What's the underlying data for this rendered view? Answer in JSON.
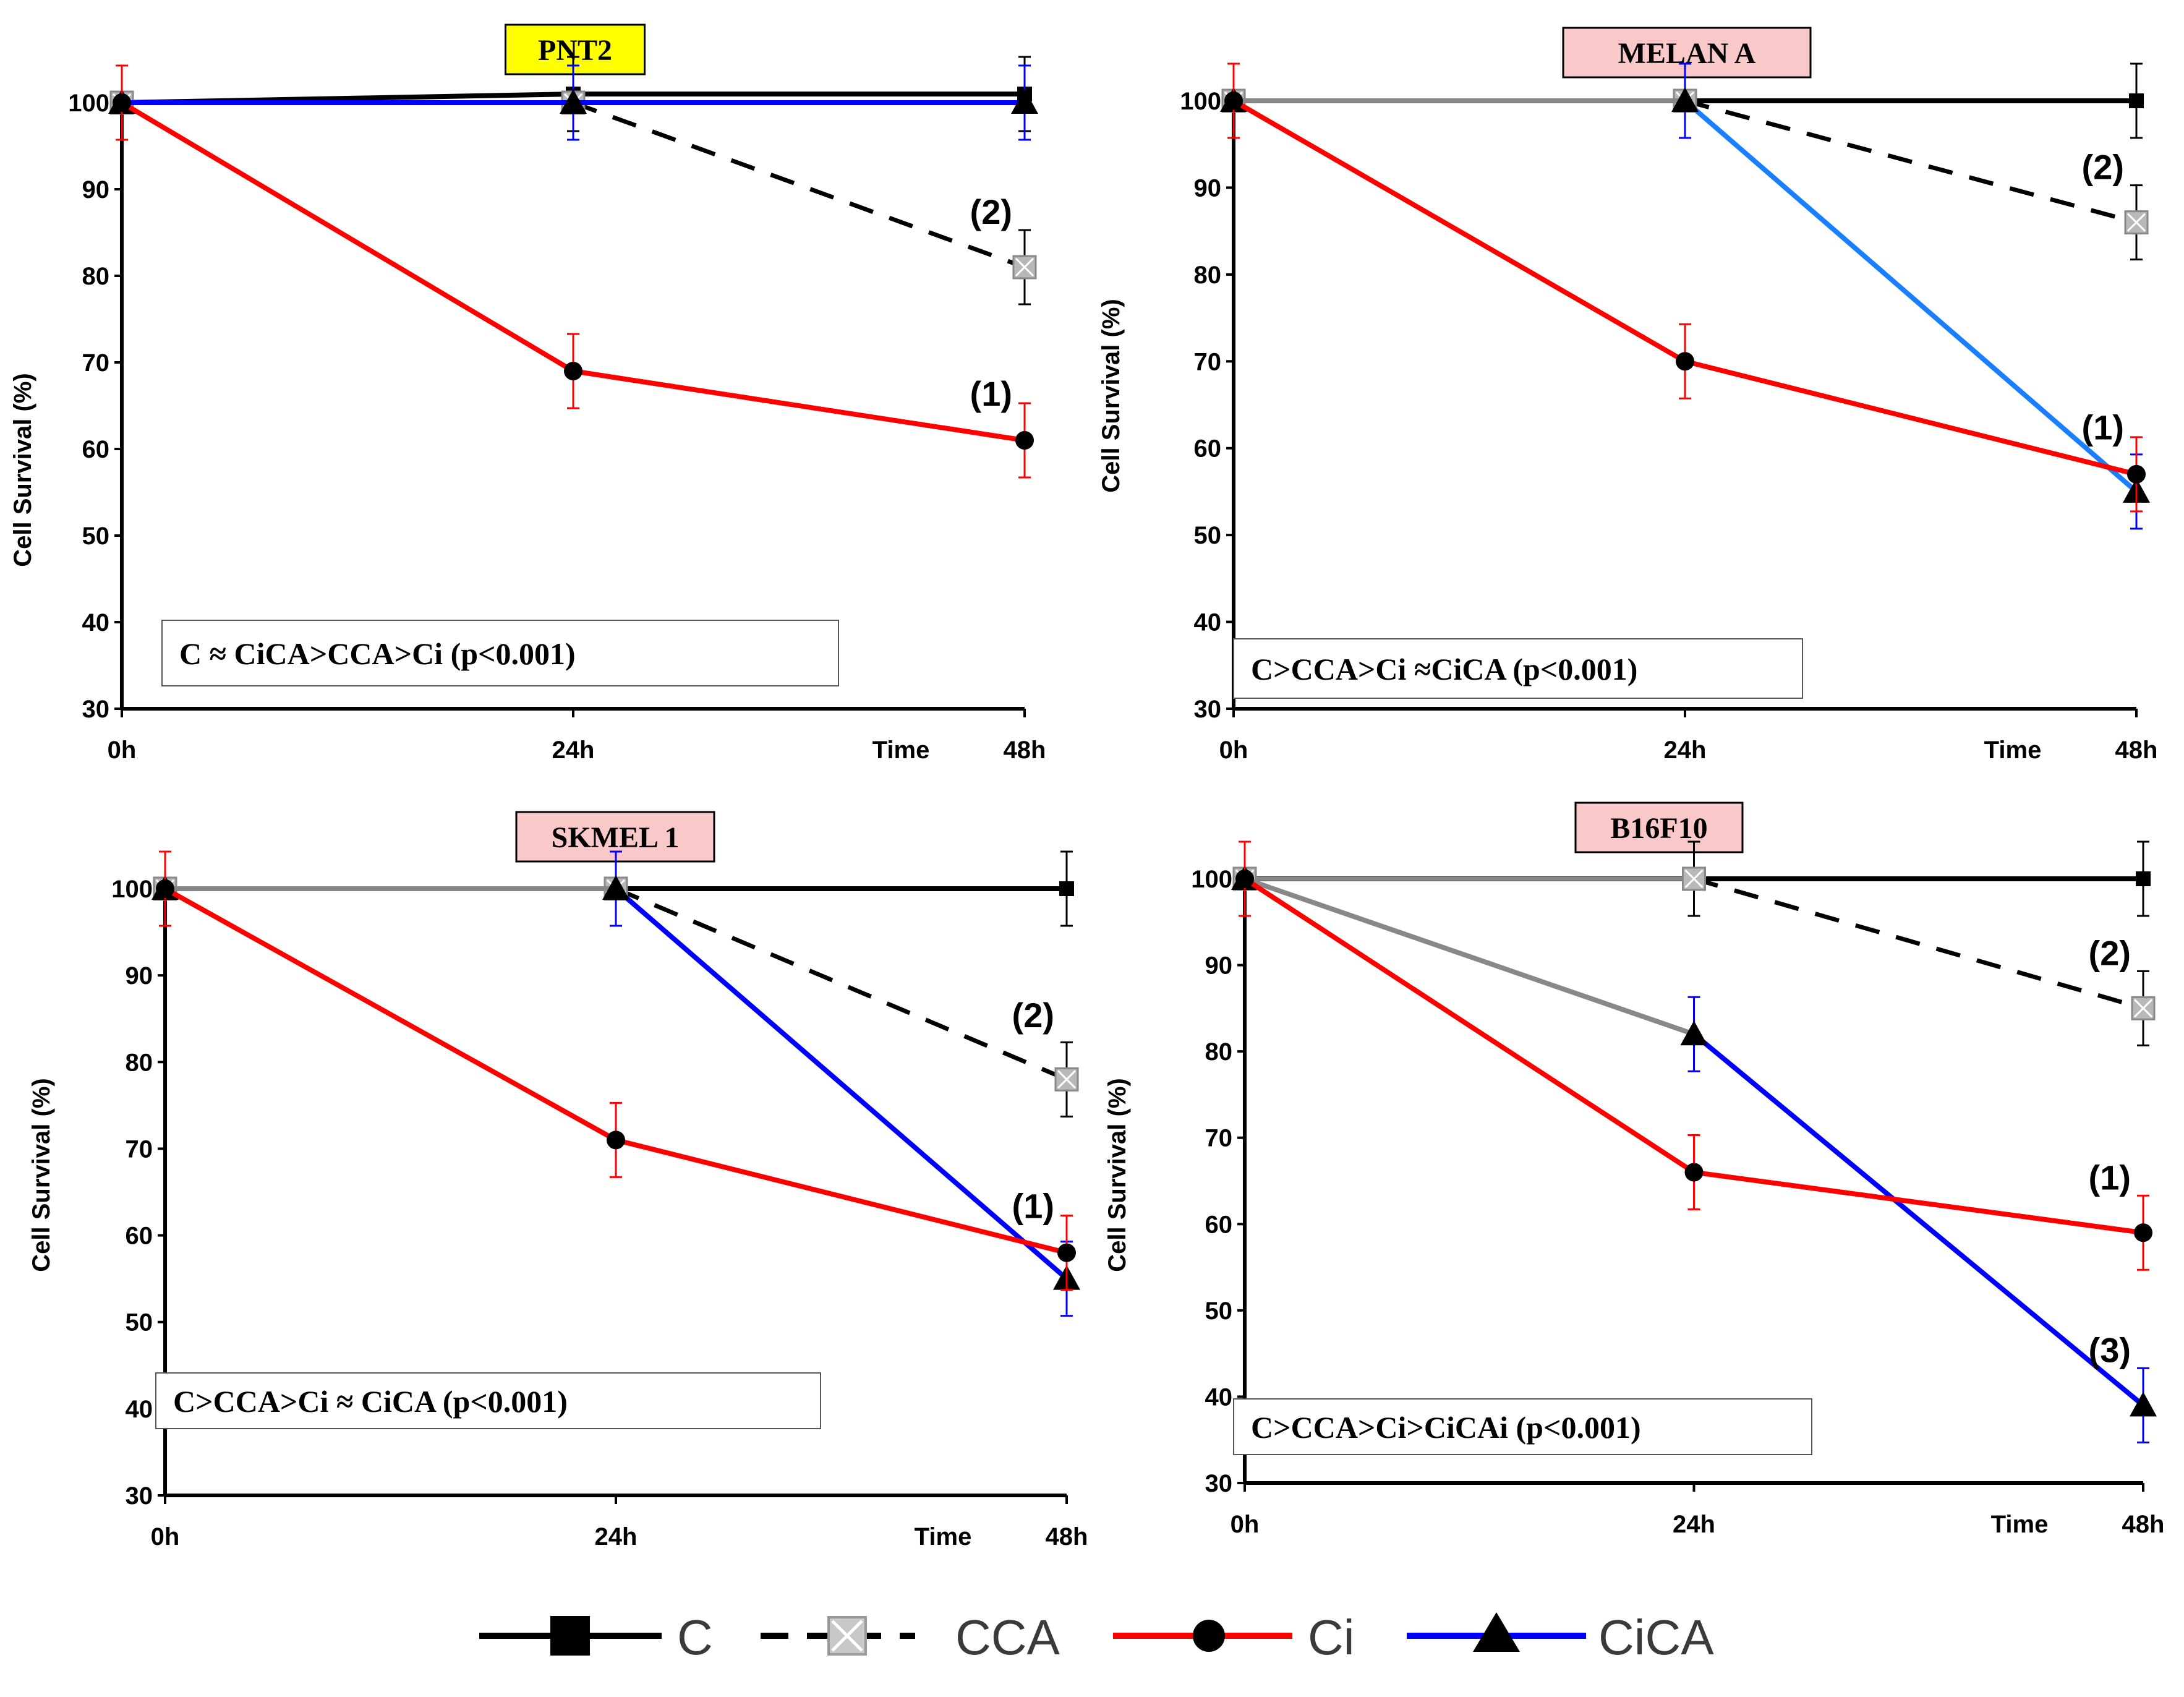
{
  "colors": {
    "C": "#000000",
    "CCA": "#000000",
    "Ci": "#ff0000",
    "CiCA": "#0000ff",
    "gray": "#888888",
    "lightblue": "#1a7fff",
    "yellow": "#ffff00",
    "pink": "#f9c9c9"
  },
  "legend": [
    {
      "label": "C",
      "marker": "square",
      "dash": false,
      "color": "#000000"
    },
    {
      "label": "CCA",
      "marker": "x-square",
      "dash": true,
      "color": "#000000"
    },
    {
      "label": "Ci",
      "marker": "circle",
      "dash": false,
      "color": "#ff0000"
    },
    {
      "label": "CiCA",
      "marker": "triangle",
      "dash": false,
      "color": "#0000ff"
    }
  ],
  "chart_data": [
    {
      "type": "line",
      "title": "PNT2",
      "title_bg": "#ffff00",
      "xlabel": "Time",
      "ylabel": "Cell Survival    (%)",
      "categories": [
        "0h",
        "24h",
        "48h"
      ],
      "ylim": [
        30,
        100
      ],
      "yticks": [
        30,
        40,
        50,
        60,
        70,
        80,
        90,
        100
      ],
      "note": "C ≈ CiCA>CCA>Ci  (p<0.001)",
      "series": [
        {
          "name": "C",
          "values": [
            100,
            101,
            101
          ]
        },
        {
          "name": "CCA",
          "values": [
            100,
            100,
            81
          ]
        },
        {
          "name": "Ci",
          "values": [
            100,
            69,
            61
          ]
        },
        {
          "name": "CiCA",
          "values": [
            100,
            100,
            100
          ]
        }
      ],
      "annotations": [
        {
          "text": "(2)",
          "x": "48h",
          "y": 86
        },
        {
          "text": "(1)",
          "x": "48h",
          "y": 65
        }
      ]
    },
    {
      "type": "line",
      "title": "MELAN A",
      "title_bg": "#f9c9c9",
      "xlabel": "Time",
      "ylabel": "Cell Survival    (%)",
      "categories": [
        "0h",
        "24h",
        "48h"
      ],
      "ylim": [
        30,
        100
      ],
      "yticks": [
        30,
        40,
        50,
        60,
        70,
        80,
        90,
        100
      ],
      "note": "C>CCA>Ci ≈CiCA (p<0.001)",
      "series": [
        {
          "name": "C",
          "values": [
            100,
            100,
            100
          ]
        },
        {
          "name": "CCA",
          "values": [
            100,
            100,
            86
          ]
        },
        {
          "name": "Ci",
          "values": [
            100,
            70,
            57
          ]
        },
        {
          "name": "CiCA",
          "values": [
            100,
            100,
            55
          ]
        }
      ],
      "annotations": [
        {
          "text": "(2)",
          "x": "48h",
          "y": 91
        },
        {
          "text": "(1)",
          "x": "48h",
          "y": 61
        }
      ]
    },
    {
      "type": "line",
      "title": "SKMEL 1",
      "title_bg": "#f9c9c9",
      "xlabel": "Time",
      "ylabel": "Cell Survival    (%)",
      "categories": [
        "0h",
        "24h",
        "48h"
      ],
      "ylim": [
        30,
        100
      ],
      "yticks": [
        30,
        40,
        50,
        60,
        70,
        80,
        90,
        100
      ],
      "note": "C>CCA>Ci ≈ CiCA (p<0.001)",
      "series": [
        {
          "name": "C",
          "values": [
            100,
            100,
            100
          ]
        },
        {
          "name": "CCA",
          "values": [
            100,
            100,
            78
          ]
        },
        {
          "name": "Ci",
          "values": [
            100,
            71,
            58
          ]
        },
        {
          "name": "CiCA",
          "values": [
            100,
            100,
            55
          ]
        }
      ],
      "annotations": [
        {
          "text": "(2)",
          "x": "48h",
          "y": 84
        },
        {
          "text": "(1)",
          "x": "48h",
          "y": 62
        }
      ]
    },
    {
      "type": "line",
      "title": "B16F10",
      "title_bg": "#f9c9c9",
      "xlabel": "Time",
      "ylabel": "Cell Survival    (%)",
      "categories": [
        "0h",
        "24h",
        "48h"
      ],
      "ylim": [
        30,
        100
      ],
      "yticks": [
        30,
        40,
        50,
        60,
        70,
        80,
        90,
        100
      ],
      "note": "C>CCA>Ci>CiCAi (p<0.001)",
      "series": [
        {
          "name": "C",
          "values": [
            100,
            100,
            100
          ]
        },
        {
          "name": "CCA",
          "values": [
            100,
            100,
            85
          ]
        },
        {
          "name": "Ci",
          "values": [
            100,
            66,
            59
          ]
        },
        {
          "name": "CiCA",
          "values": [
            100,
            82,
            39
          ]
        }
      ],
      "annotations": [
        {
          "text": "(2)",
          "x": "48h",
          "y": 90
        },
        {
          "text": "(1)",
          "x": "48h",
          "y": 64
        },
        {
          "text": "(3)",
          "x": "48h",
          "y": 44
        }
      ]
    }
  ]
}
